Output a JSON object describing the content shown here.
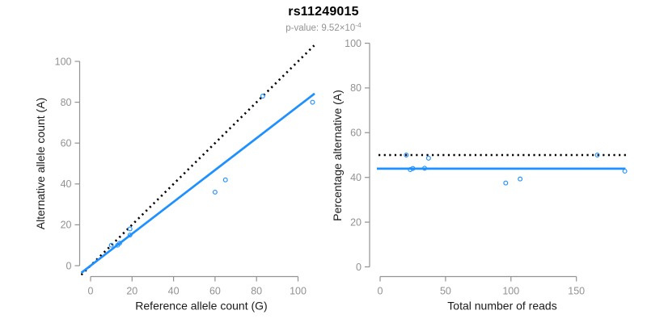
{
  "header": {
    "title": "rs11249015",
    "pvalue_prefix": "p-value: 9.52×10",
    "pvalue_exponent": "-4"
  },
  "colors": {
    "accent_blue": "#1E90FF",
    "axis_gray": "#929292",
    "axis_title_black": "#1a1a1a",
    "dotted_black": "#000000",
    "subtitle_gray": "#949494"
  },
  "chart_data": [
    {
      "type": "scatter",
      "name": "allele-counts-scatter",
      "xlabel": "Reference allele count (G)",
      "ylabel": "Alternative allele count (A)",
      "xticks": [
        0,
        20,
        40,
        60,
        80,
        100
      ],
      "yticks": [
        0,
        20,
        40,
        60,
        80,
        100
      ],
      "xlim": [
        0,
        108
      ],
      "ylim": [
        0,
        108
      ],
      "grid": false,
      "point_color": "#1E90FF",
      "points": [
        [
          10,
          10
        ],
        [
          13,
          10
        ],
        [
          14,
          11
        ],
        [
          19,
          15
        ],
        [
          19,
          18
        ],
        [
          60,
          36
        ],
        [
          65,
          42
        ],
        [
          83,
          83
        ],
        [
          107,
          80
        ]
      ],
      "lines": [
        {
          "name": "identity-line",
          "type": "abline",
          "slope": 1,
          "intercept": 0,
          "style": "dotted",
          "color": "#000000"
        },
        {
          "name": "fit-line",
          "type": "abline",
          "slope": 0.78,
          "intercept": 0,
          "style": "solid",
          "color": "#1E90FF"
        }
      ]
    },
    {
      "type": "scatter",
      "name": "percentage-vs-reads-scatter",
      "xlabel": "Total number of reads",
      "ylabel": "Percentage alternative (A)",
      "xticks": [
        0,
        50,
        100,
        150
      ],
      "yticks": [
        0,
        20,
        40,
        60,
        80,
        100
      ],
      "xlim": [
        0,
        190
      ],
      "ylim": [
        0,
        100
      ],
      "grid": false,
      "point_color": "#1E90FF",
      "points": [
        [
          20,
          50
        ],
        [
          23,
          43.5
        ],
        [
          25,
          44
        ],
        [
          34,
          44.1
        ],
        [
          37,
          48.6
        ],
        [
          96,
          37.5
        ],
        [
          107,
          39.3
        ],
        [
          166,
          50
        ],
        [
          187,
          42.8
        ]
      ],
      "lines": [
        {
          "name": "expected-50pct-line",
          "type": "hline",
          "y": 50,
          "style": "dotted",
          "color": "#000000"
        },
        {
          "name": "mean-percentage-line",
          "type": "hline",
          "y": 43.9,
          "style": "solid",
          "color": "#1E90FF"
        }
      ]
    }
  ]
}
